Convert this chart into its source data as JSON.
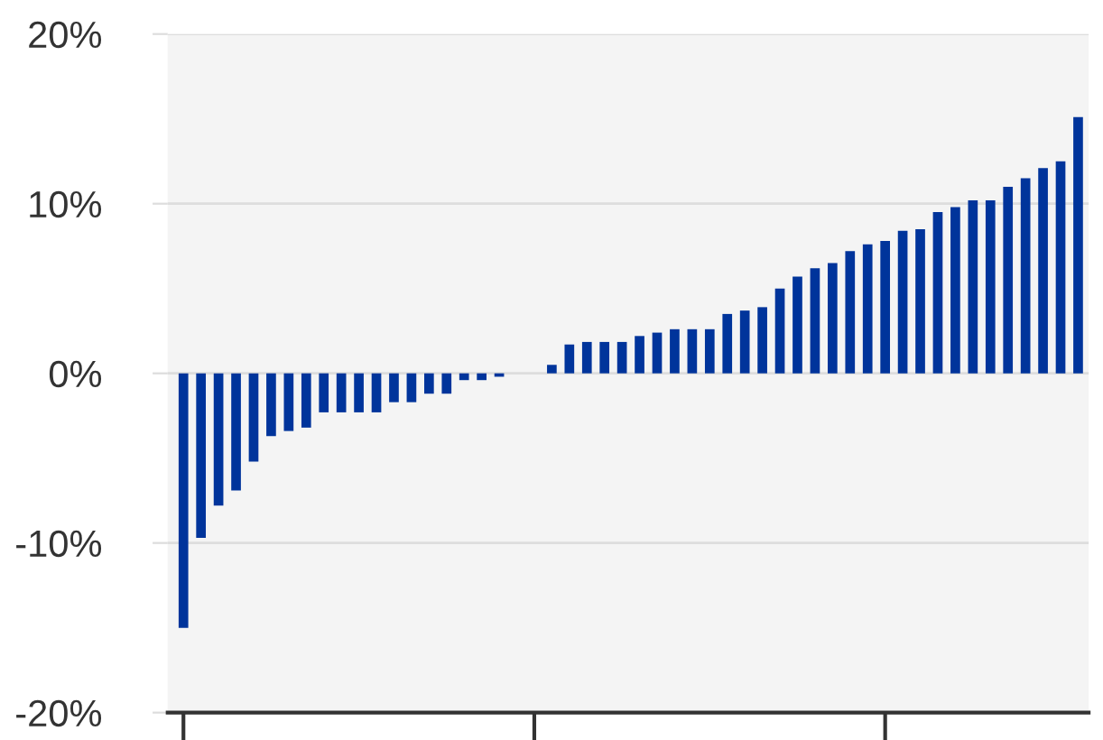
{
  "chart_data": {
    "type": "bar",
    "categories": [
      null,
      null,
      null,
      null,
      null,
      null,
      null,
      null,
      null,
      null,
      null,
      null,
      null,
      null,
      null,
      null,
      null,
      null,
      null,
      null,
      null,
      null,
      null,
      null,
      null,
      null,
      null,
      null,
      null,
      null,
      null,
      null,
      null,
      null,
      null,
      null,
      null,
      null,
      null,
      null,
      null,
      null,
      null,
      null,
      null,
      null,
      null,
      null,
      null,
      null,
      null,
      null
    ],
    "values": [
      -15.0,
      -9.7,
      -7.8,
      -6.9,
      -5.2,
      -3.7,
      -3.4,
      -3.2,
      -2.3,
      -2.3,
      -2.3,
      -2.3,
      -1.7,
      -1.7,
      -1.2,
      -1.2,
      -0.4,
      -0.4,
      -0.2,
      0,
      0,
      0.5,
      1.7,
      1.85,
      1.85,
      1.85,
      2.2,
      2.4,
      2.6,
      2.6,
      2.6,
      3.5,
      3.7,
      3.9,
      5.0,
      5.7,
      6.2,
      6.5,
      7.2,
      7.6,
      7.8,
      8.4,
      8.5,
      9.5,
      9.8,
      10.2,
      10.2,
      11.0,
      11.5,
      12.1,
      12.5,
      15.1
    ],
    "color": "#00349b",
    "ylim": [
      -20,
      20
    ],
    "yticks": [
      {
        "value": -20,
        "label": "-20%"
      },
      {
        "value": -10,
        "label": "-10%"
      },
      {
        "value": 0,
        "label": "0%"
      },
      {
        "value": 10,
        "label": "10%"
      },
      {
        "value": 20,
        "label": "20%"
      }
    ],
    "grid": "y"
  }
}
